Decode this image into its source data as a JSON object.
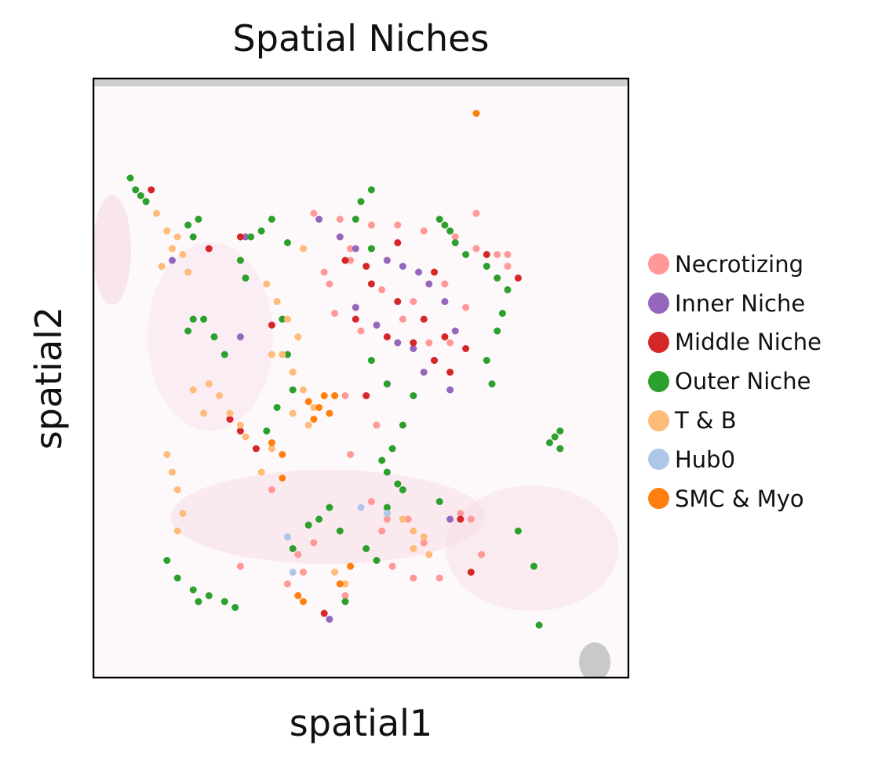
{
  "chart_data": {
    "type": "scatter",
    "title": "Spatial Niches",
    "xlabel": "spatial1",
    "ylabel": "spatial2",
    "legend_position": "right",
    "xlim": [
      0,
      100
    ],
    "ylim": [
      0,
      100
    ],
    "legend": [
      {
        "label": "Necrotizing",
        "color": "#ff9896"
      },
      {
        "label": "Inner Niche",
        "color": "#9467bd"
      },
      {
        "label": "Middle Niche",
        "color": "#d62728"
      },
      {
        "label": "Outer Niche",
        "color": "#2ca02c"
      },
      {
        "label": "T & B",
        "color": "#ffbb78"
      },
      {
        "label": "Hub0",
        "color": "#aec7e8"
      },
      {
        "label": "SMC & Myo",
        "color": "#ff7f0e"
      }
    ],
    "series": [
      {
        "name": "Necrotizing",
        "color": "#ff9896",
        "x": [
          41,
          46,
          52,
          57,
          62,
          68,
          72,
          76,
          48,
          54,
          60,
          66,
          70,
          58,
          45,
          50,
          63,
          67,
          47,
          53,
          48,
          52,
          55,
          59,
          62,
          71,
          73,
          69,
          54,
          56,
          60,
          65,
          78,
          78,
          43,
          44,
          48,
          41,
          47,
          36,
          27,
          38,
          39,
          33,
          72
        ],
        "y": [
          78,
          77,
          76,
          76,
          75,
          74,
          72,
          71,
          70,
          65,
          63,
          66,
          62,
          60,
          61,
          58,
          56,
          56,
          47,
          42,
          37,
          29,
          26,
          26,
          22,
          26,
          20,
          27,
          24,
          18,
          16,
          16,
          69,
          71,
          68,
          66,
          72,
          22,
          13,
          15,
          18,
          20,
          17,
          31,
          78
        ]
      },
      {
        "name": "Inner Niche",
        "color": "#9467bd",
        "x": [
          42,
          46,
          49,
          52,
          55,
          58,
          61,
          63,
          66,
          49,
          53,
          57,
          60,
          64,
          55,
          62,
          67,
          14,
          28,
          27,
          68,
          44,
          67
        ],
        "y": [
          77,
          74,
          72,
          72,
          70,
          69,
          68,
          66,
          63,
          62,
          59,
          56,
          55,
          53,
          49,
          51,
          48,
          70,
          74,
          57,
          58,
          9,
          26
        ]
      },
      {
        "name": "Middle Niche",
        "color": "#d62728",
        "x": [
          47,
          52,
          57,
          62,
          66,
          70,
          49,
          55,
          60,
          64,
          67,
          51,
          57,
          64,
          33,
          25,
          27,
          30,
          10,
          21,
          27,
          51,
          43,
          74,
          69,
          80,
          71
        ],
        "y": [
          70,
          66,
          63,
          60,
          57,
          55,
          60,
          57,
          56,
          53,
          51,
          69,
          73,
          68,
          59,
          43,
          41,
          38,
          82,
          72,
          74,
          47,
          10,
          71,
          26,
          67,
          17
        ]
      },
      {
        "name": "Outer Niche",
        "color": "#2ca02c",
        "x": [
          6,
          7,
          9,
          8,
          17,
          18,
          19,
          17,
          20,
          22,
          24,
          29,
          31,
          33,
          36,
          27,
          28,
          35,
          36,
          34,
          32,
          37,
          52,
          55,
          56,
          58,
          60,
          65,
          66,
          67,
          68,
          70,
          74,
          76,
          78,
          77,
          76,
          74,
          75,
          86,
          87,
          88,
          88,
          54,
          55,
          57,
          58,
          40,
          42,
          44,
          46,
          51,
          53,
          55,
          52,
          50,
          49,
          13,
          15,
          18,
          19,
          21,
          24,
          26,
          18,
          37,
          47,
          65,
          80,
          83,
          52,
          84
        ],
        "y": [
          84,
          82,
          80,
          81,
          76,
          74,
          77,
          58,
          60,
          57,
          54,
          74,
          75,
          77,
          73,
          70,
          67,
          60,
          54,
          45,
          41,
          48,
          53,
          49,
          38,
          42,
          47,
          77,
          76,
          75,
          73,
          71,
          69,
          67,
          65,
          61,
          58,
          53,
          49,
          39,
          40,
          41,
          38,
          36,
          34,
          32,
          31,
          25,
          26,
          28,
          24,
          21,
          19,
          28,
          82,
          80,
          77,
          19,
          16,
          14,
          12,
          13,
          12,
          11,
          60,
          21,
          12,
          29,
          24,
          18,
          72,
          8
        ]
      },
      {
        "name": "T & B",
        "color": "#ffbb78",
        "x": [
          11,
          13,
          14,
          12,
          15,
          16,
          17,
          32,
          34,
          36,
          38,
          35,
          37,
          39,
          41,
          40,
          33,
          21,
          23,
          25,
          27,
          28,
          18,
          20,
          31,
          13,
          14,
          15,
          16,
          15,
          55,
          58,
          60,
          62,
          63,
          60,
          45,
          47,
          37,
          33,
          39
        ],
        "y": [
          78,
          75,
          72,
          69,
          74,
          71,
          68,
          66,
          63,
          60,
          57,
          54,
          51,
          48,
          45,
          42,
          38,
          49,
          47,
          44,
          42,
          40,
          48,
          44,
          34,
          37,
          34,
          31,
          27,
          24,
          27,
          26,
          24,
          23,
          20,
          21,
          17,
          15,
          44,
          54,
          72
        ]
      },
      {
        "name": "Hub0",
        "color": "#aec7e8",
        "x": [
          36,
          37,
          50,
          55
        ],
        "y": [
          23,
          17,
          28,
          27
        ]
      },
      {
        "name": "SMC & Myo",
        "color": "#ff7f0e",
        "x": [
          40,
          42,
          44,
          45,
          41,
          43,
          33,
          35,
          35,
          38,
          39,
          46,
          48,
          72
        ],
        "y": [
          46,
          45,
          44,
          47,
          43,
          47,
          39,
          37,
          33,
          13,
          12,
          15,
          18,
          95
        ]
      }
    ]
  }
}
